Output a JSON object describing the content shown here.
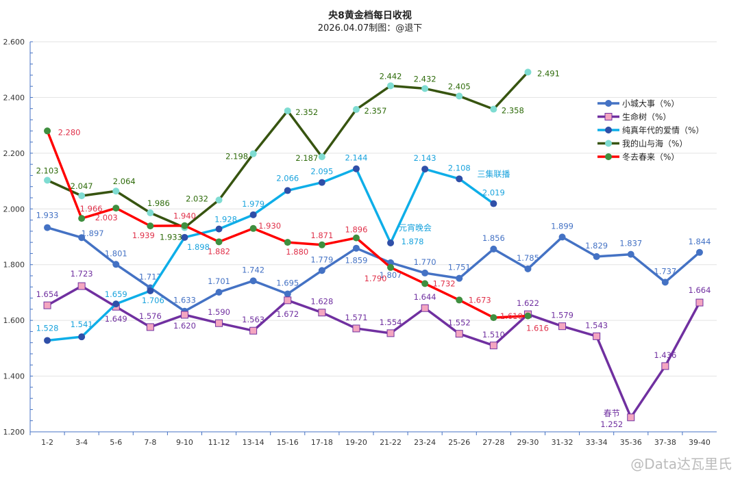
{
  "chart_data": {
    "type": "line",
    "title": "央8黄金档每日收视",
    "subtitle": "2026.04.07制图：@退下",
    "categories": [
      "1-2",
      "3-4",
      "5-6",
      "7-8",
      "9-10",
      "11-12",
      "13-14",
      "15-16",
      "17-18",
      "19-20",
      "21-22",
      "23-24",
      "25-26",
      "27-28",
      "29-30",
      "31-32",
      "33-34",
      "35-36",
      "37-38",
      "39-40"
    ],
    "ylim": [
      1.2,
      2.6
    ],
    "yticks": [
      "1.200",
      "1.400",
      "1.600",
      "1.800",
      "2.000",
      "2.200",
      "2.400",
      "2.600"
    ],
    "grid": true,
    "legend_position": "right",
    "series": [
      {
        "name": "小城大事（%）",
        "color": "#4472c4",
        "marker": "circle",
        "marker_color": "#4472c4",
        "label_color": "#4472c4",
        "values": [
          1.933,
          1.897,
          1.801,
          1.717,
          1.633,
          1.701,
          1.742,
          1.695,
          1.779,
          1.859,
          1.807,
          1.77,
          1.751,
          1.856,
          1.785,
          1.899,
          1.829,
          1.837,
          1.737,
          1.844
        ]
      },
      {
        "name": "生命树（%）",
        "color": "#7030a0",
        "marker": "square",
        "marker_color": "#f4a6c0",
        "label_color": "#7030a0",
        "values": [
          1.654,
          1.723,
          1.649,
          1.576,
          1.62,
          1.59,
          1.563,
          1.672,
          1.628,
          1.571,
          1.554,
          1.644,
          1.552,
          1.51,
          1.622,
          1.579,
          1.543,
          1.252,
          1.436,
          1.664
        ]
      },
      {
        "name": "纯真年代的爱情（%）",
        "color": "#0eaee8",
        "marker": "circle",
        "marker_color": "#2f4fa8",
        "label_color": "#19a3dd",
        "values": [
          1.528,
          1.541,
          1.659,
          1.706,
          1.898,
          1.928,
          1.979,
          2.066,
          2.095,
          2.144,
          1.878,
          2.143,
          2.108,
          2.019,
          null,
          null,
          null,
          null,
          null,
          null
        ]
      },
      {
        "name": "我的山与海（%）",
        "color": "#375410",
        "marker": "circle",
        "marker_color": "#7fdcd2",
        "label_color": "#2e6b0a",
        "values": [
          2.103,
          2.047,
          2.064,
          1.986,
          1.933,
          2.032,
          2.198,
          2.352,
          2.187,
          2.357,
          2.442,
          2.432,
          2.405,
          2.358,
          2.491,
          null,
          null,
          null,
          null,
          null
        ]
      },
      {
        "name": "冬去春来（%）",
        "color": "#ff0000",
        "marker": "circle",
        "marker_color": "#3f8f3f",
        "label_color": "#e0314a",
        "values": [
          2.28,
          1.966,
          2.003,
          1.939,
          1.94,
          1.882,
          1.93,
          1.88,
          1.871,
          1.896,
          1.79,
          1.732,
          1.673,
          1.61,
          1.616,
          null,
          null,
          null,
          null,
          null
        ]
      }
    ],
    "annotations": [
      {
        "text": "元宵晚会",
        "series": "纯真年代的爱情（%）",
        "category": "21-22"
      },
      {
        "text": "三集联播",
        "series": "纯真年代的爱情（%）",
        "category": "27-28"
      },
      {
        "text": "春节",
        "series": "生命树（%）",
        "category": "35-36"
      }
    ]
  },
  "watermark": "@Data达瓦里氏"
}
